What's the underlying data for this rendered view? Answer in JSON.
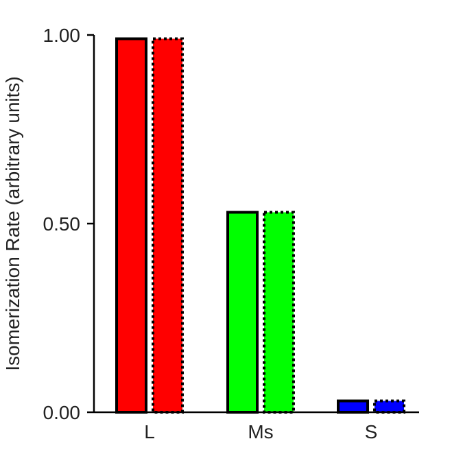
{
  "chart_data": {
    "type": "bar",
    "title": "",
    "xlabel": "",
    "ylabel": "Isomerization Rate (arbitrary units)",
    "ylim": [
      0,
      1
    ],
    "yticks": [
      "0.00",
      "0.50",
      "1.00"
    ],
    "ytick_values": [
      0,
      0.5,
      1
    ],
    "categories": [
      "L",
      "Ms",
      "S"
    ],
    "bar_colors": [
      "#ff0000",
      "#00ff00",
      "#0000ff"
    ],
    "grid": false,
    "legend": "none",
    "series": [
      {
        "values": [
          0.99,
          0.53,
          0.03
        ],
        "border": "solid"
      },
      {
        "values": [
          0.99,
          0.53,
          0.03
        ],
        "border": "dotted"
      }
    ]
  }
}
